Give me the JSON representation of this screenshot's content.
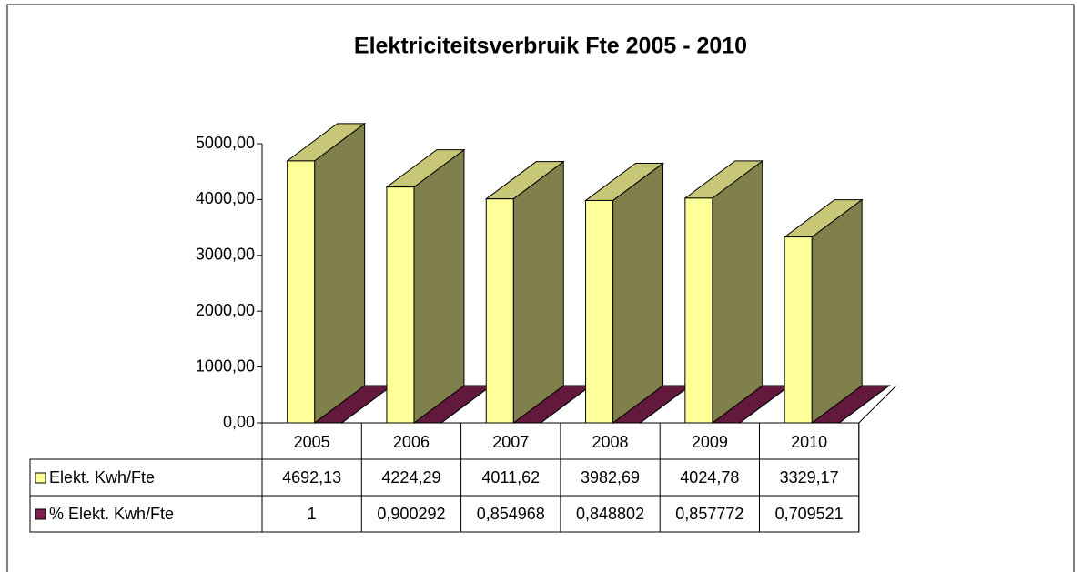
{
  "chart_data": {
    "type": "bar",
    "title": "Elektriciteitsverbruik Fte 2005 - 2010",
    "categories": [
      "2005",
      "2006",
      "2007",
      "2008",
      "2009",
      "2010"
    ],
    "series": [
      {
        "name": "Elekt. Kwh/Fte",
        "color": "#ffff99",
        "values": [
          4692.13,
          4224.29,
          4011.62,
          3982.69,
          4024.78,
          3329.17
        ],
        "value_labels": [
          "4692,13",
          "4224,29",
          "4011,62",
          "3982,69",
          "4024,78",
          "3329,17"
        ]
      },
      {
        "name": "% Elekt. Kwh/Fte",
        "color": "#7f2050",
        "values": [
          1,
          0.900292,
          0.854968,
          0.848802,
          0.857772,
          0.709521
        ],
        "value_labels": [
          "1",
          "0,900292",
          "0,854968",
          "0,848802",
          "0,857772",
          "0,709521"
        ]
      }
    ],
    "ylim": [
      0,
      5000
    ],
    "yticks": [
      {
        "value": 0,
        "label": "0,00"
      },
      {
        "value": 1000,
        "label": "1000,00"
      },
      {
        "value": 2000,
        "label": "2000,00"
      },
      {
        "value": 3000,
        "label": "3000,00"
      },
      {
        "value": 4000,
        "label": "4000,00"
      },
      {
        "value": 5000,
        "label": "5000,00"
      }
    ]
  }
}
